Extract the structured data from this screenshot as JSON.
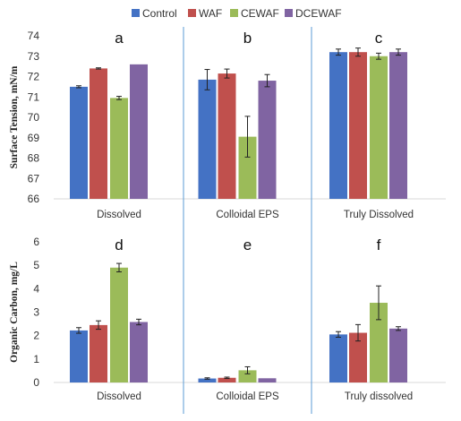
{
  "legend": [
    {
      "name": "Control",
      "color": "#4472C4"
    },
    {
      "name": "WAF",
      "color": "#C0504D"
    },
    {
      "name": "CEWAF",
      "color": "#9BBB59"
    },
    {
      "name": "DCEWAF",
      "color": "#8064A2"
    }
  ],
  "chart_data": [
    {
      "type": "bar",
      "ylabel": "Surface Tension, mN/m",
      "ylim": [
        66,
        74
      ],
      "yticks": [
        "66",
        "67",
        "68",
        "69",
        "70",
        "71",
        "72",
        "73",
        "74"
      ],
      "grid": false,
      "legend_position": "top",
      "panels": [
        {
          "letter": "a",
          "category": "Dissolved",
          "series": [
            {
              "name": "Control",
              "value": 71.5,
              "error": 0.05
            },
            {
              "name": "WAF",
              "value": 72.4,
              "error": 0.03
            },
            {
              "name": "CEWAF",
              "value": 70.95,
              "error": 0.08
            },
            {
              "name": "DCEWAF",
              "value": 72.6,
              "error": 0.0
            }
          ]
        },
        {
          "letter": "b",
          "category": "Colloidal EPS",
          "series": [
            {
              "name": "Control",
              "value": 71.85,
              "error": 0.5
            },
            {
              "name": "WAF",
              "value": 72.15,
              "error": 0.22
            },
            {
              "name": "CEWAF",
              "value": 69.05,
              "error": 1.0
            },
            {
              "name": "DCEWAF",
              "value": 71.8,
              "error": 0.3
            }
          ]
        },
        {
          "letter": "c",
          "category": "Truly Dissolved",
          "series": [
            {
              "name": "Control",
              "value": 73.2,
              "error": 0.15
            },
            {
              "name": "WAF",
              "value": 73.2,
              "error": 0.2
            },
            {
              "name": "CEWAF",
              "value": 73.0,
              "error": 0.15
            },
            {
              "name": "DCEWAF",
              "value": 73.2,
              "error": 0.15
            }
          ]
        }
      ]
    },
    {
      "type": "bar",
      "ylabel": "Organic Carbon, mg/L",
      "ylim": [
        0,
        6
      ],
      "yticks": [
        "0",
        "1",
        "2",
        "3",
        "4",
        "5",
        "6"
      ],
      "grid": false,
      "panels": [
        {
          "letter": "d",
          "category": "Dissolved",
          "series": [
            {
              "name": "Control",
              "value": 2.22,
              "error": 0.12
            },
            {
              "name": "WAF",
              "value": 2.45,
              "error": 0.18
            },
            {
              "name": "CEWAF",
              "value": 4.9,
              "error": 0.18
            },
            {
              "name": "DCEWAF",
              "value": 2.58,
              "error": 0.12
            }
          ]
        },
        {
          "letter": "e",
          "category": "Colloidal EPS",
          "series": [
            {
              "name": "Control",
              "value": 0.17,
              "error": 0.03
            },
            {
              "name": "WAF",
              "value": 0.2,
              "error": 0.03
            },
            {
              "name": "CEWAF",
              "value": 0.52,
              "error": 0.15
            },
            {
              "name": "DCEWAF",
              "value": 0.18,
              "error": 0.0
            }
          ]
        },
        {
          "letter": "f",
          "category": "Truly dissolved",
          "series": [
            {
              "name": "Control",
              "value": 2.05,
              "error": 0.12
            },
            {
              "name": "WAF",
              "value": 2.12,
              "error": 0.35
            },
            {
              "name": "CEWAF",
              "value": 3.4,
              "error": 0.72
            },
            {
              "name": "DCEWAF",
              "value": 2.3,
              "error": 0.08
            }
          ]
        }
      ]
    }
  ]
}
